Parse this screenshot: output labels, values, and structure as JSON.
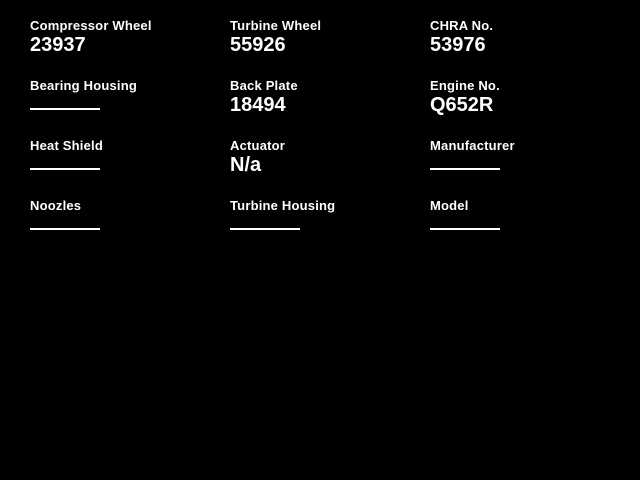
{
  "page": {
    "background_color": "#000000",
    "text_color": "#ffffff",
    "empty_value_style": "underline-dash"
  },
  "fields": [
    {
      "label": "Compressor Wheel",
      "value": "23937"
    },
    {
      "label": "Turbine Wheel",
      "value": "55926"
    },
    {
      "label": "CHRA No.",
      "value": "53976"
    },
    {
      "label": "Bearing Housing",
      "value": null
    },
    {
      "label": "Back Plate",
      "value": "18494"
    },
    {
      "label": "Engine No.",
      "value": "Q652R"
    },
    {
      "label": "Heat Shield",
      "value": null
    },
    {
      "label": "Actuator",
      "value": "N/a"
    },
    {
      "label": "Manufacturer",
      "value": null
    },
    {
      "label": "Noozles",
      "value": null
    },
    {
      "label": "Turbine Housing",
      "value": null
    },
    {
      "label": "Model",
      "value": null
    }
  ]
}
